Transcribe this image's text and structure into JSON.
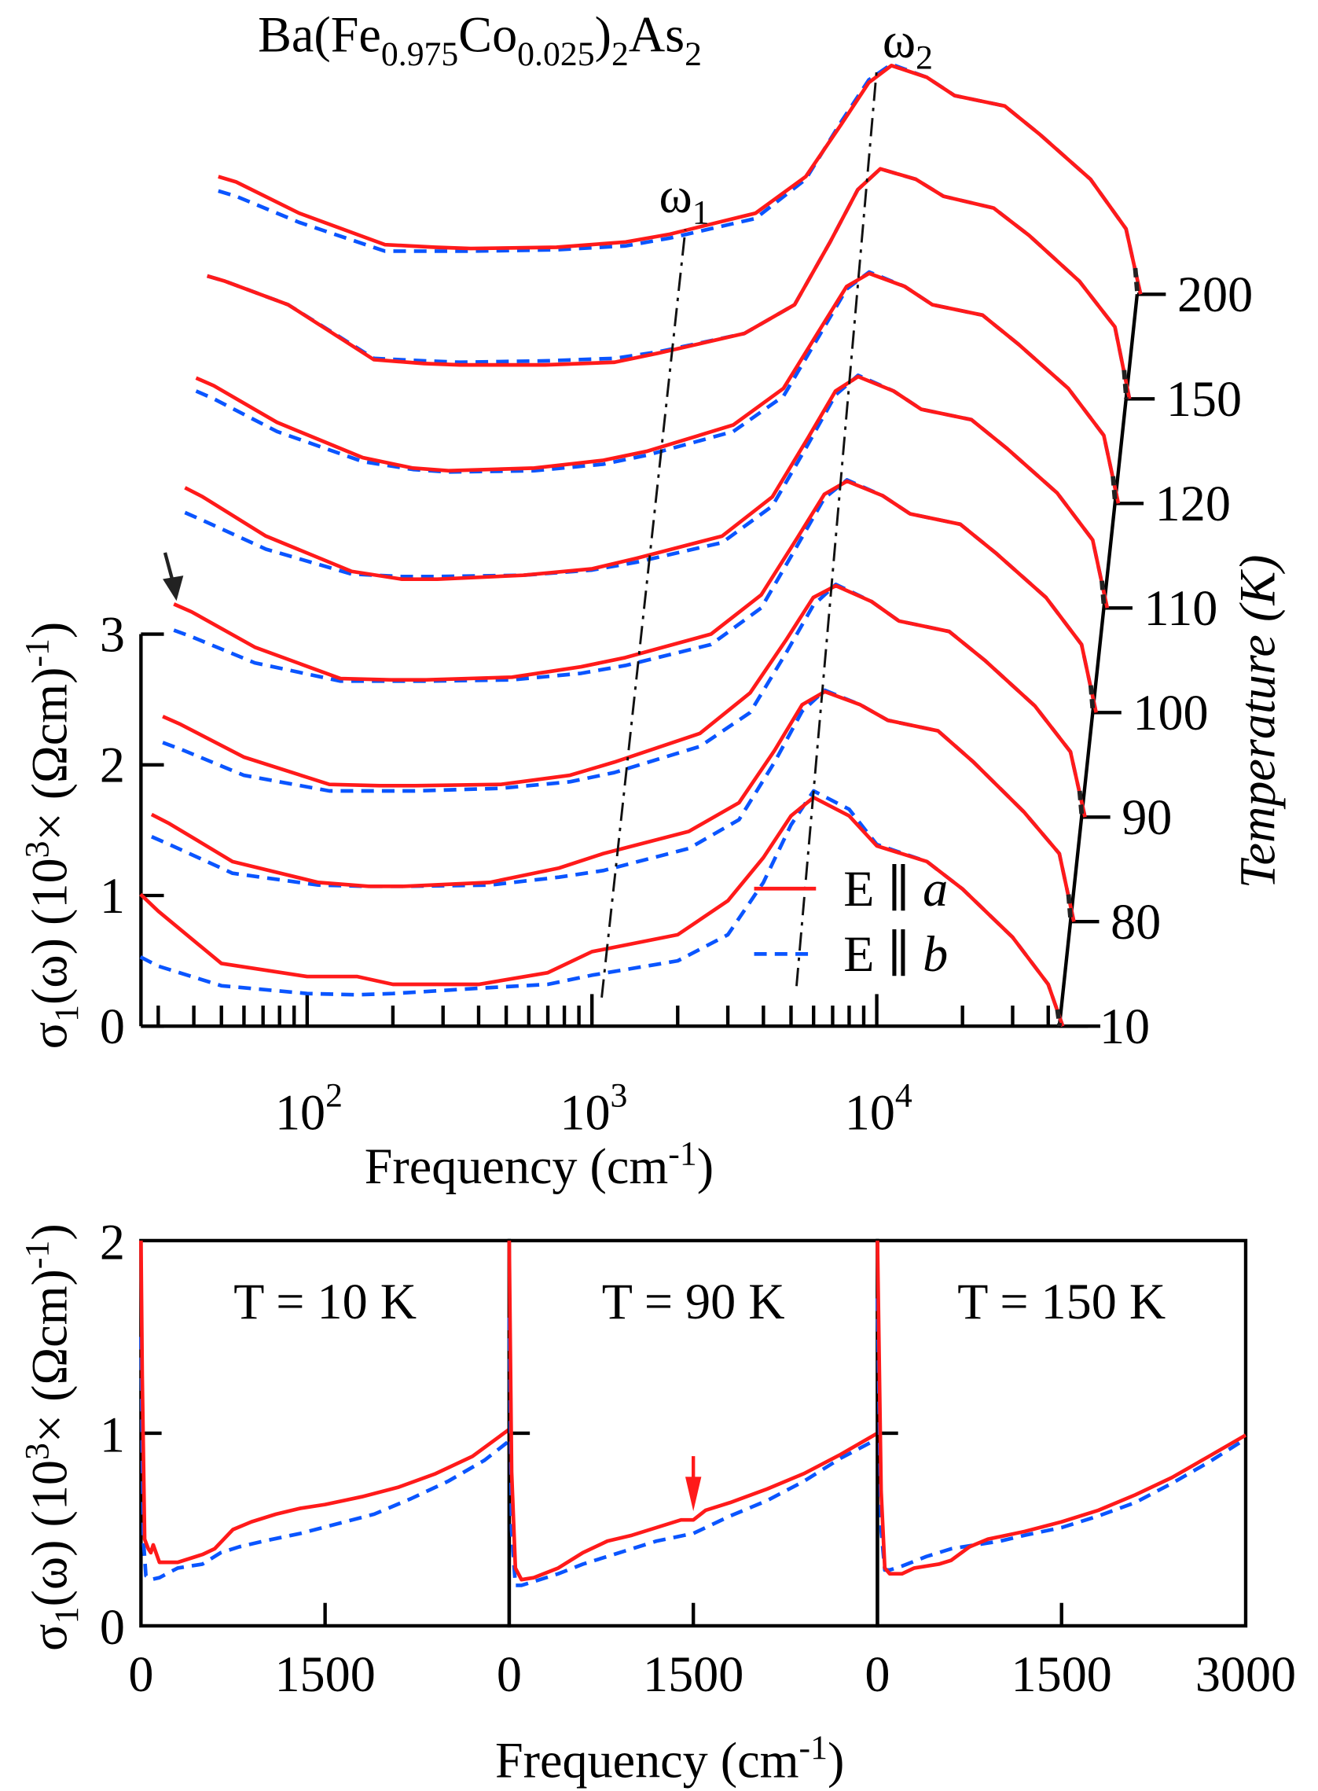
{
  "chart_data": [
    {
      "type": "line",
      "title": "Ba(Fe0.975Co0.025)2As2",
      "title_parts": {
        "base1": "Ba(Fe",
        "sub1": "0.975",
        "base2": "Co",
        "sub2": "0.025",
        "base3": ")",
        "sub3": "2",
        "base4": "As",
        "sub4": "2"
      },
      "layout": "waterfall, vertically offset by temperature",
      "offset_per_curve": 0.8,
      "xlabel": "Frequency (cm-1)",
      "xlabel_parts": {
        "base": "Frequency (cm",
        "sup": "-1",
        "end": ")"
      },
      "ylabel_parts": {
        "a": "σ",
        "sub": "1",
        "b": "(ω) (10",
        "sup1": "3",
        "c": "× (Ωcm)",
        "sup2": "-1",
        "d": ")"
      },
      "xscale": "log",
      "xlim": [
        26,
        46000
      ],
      "ylim": [
        0,
        3
      ],
      "yticks": [
        "0",
        "1",
        "2",
        "3"
      ],
      "xticks": [
        {
          "base": "10",
          "exp": "2"
        },
        {
          "base": "10",
          "exp": "3"
        },
        {
          "base": "10",
          "exp": "4"
        }
      ],
      "temperature_axis": {
        "label": "Temperature (K)",
        "ticks": [
          "10",
          "80",
          "90",
          "100",
          "110",
          "120",
          "150",
          "200"
        ]
      },
      "annotations": {
        "omega1": {
          "base": "ω",
          "sub": "1"
        },
        "omega2": {
          "base": "ω",
          "sub": "2"
        }
      },
      "legend": {
        "placement": "lower-right",
        "entries": [
          {
            "label": "E ∥ a",
            "base": "E ∥ ",
            "ital": "a",
            "color": "#ff1a1a",
            "style": "solid"
          },
          {
            "label": "E ∥ b",
            "base": "E ∥ ",
            "ital": "b",
            "color": "#0a55ff",
            "style": "dashed"
          }
        ]
      },
      "x": [
        26,
        30,
        50,
        100,
        150,
        200,
        400,
        700,
        1000,
        2000,
        3000,
        4000,
        5000,
        6000,
        8000,
        10000,
        15000,
        20000,
        30000,
        40000,
        45000
      ],
      "series": [
        {
          "temperature": "10",
          "a": [
            1.01,
            0.88,
            0.48,
            0.38,
            0.38,
            0.32,
            0.32,
            0.41,
            0.57,
            0.7,
            0.96,
            1.29,
            1.61,
            1.75,
            1.61,
            1.38,
            1.26,
            1.05,
            0.68,
            0.32,
            0
          ],
          "b": [
            0.53,
            0.46,
            0.31,
            0.25,
            0.24,
            0.25,
            0.29,
            0.32,
            0.39,
            0.5,
            0.7,
            1.1,
            1.54,
            1.8,
            1.66,
            1.39,
            1.26,
            1.05,
            0.68,
            0.32,
            0
          ]
        },
        {
          "temperature": "80",
          "a": [
            0.82,
            0.75,
            0.46,
            0.3,
            0.27,
            0.27,
            0.3,
            0.41,
            0.52,
            0.69,
            0.91,
            1.31,
            1.66,
            1.76,
            1.66,
            1.54,
            1.46,
            1.22,
            0.84,
            0.52,
            0
          ],
          "b": [
            0.65,
            0.59,
            0.37,
            0.28,
            0.27,
            0.27,
            0.28,
            0.34,
            0.39,
            0.56,
            0.78,
            1.22,
            1.61,
            1.77,
            1.66,
            1.54,
            1.46,
            1.22,
            0.84,
            0.52,
            0
          ]
        },
        {
          "temperature": "90",
          "a": [
            0.77,
            0.71,
            0.46,
            0.25,
            0.24,
            0.24,
            0.25,
            0.32,
            0.42,
            0.64,
            0.95,
            1.35,
            1.68,
            1.77,
            1.65,
            1.5,
            1.42,
            1.2,
            0.85,
            0.5,
            0
          ],
          "b": [
            0.57,
            0.52,
            0.32,
            0.2,
            0.2,
            0.2,
            0.22,
            0.27,
            0.34,
            0.54,
            0.8,
            1.25,
            1.62,
            1.78,
            1.65,
            1.5,
            1.42,
            1.2,
            0.85,
            0.5,
            0
          ]
        },
        {
          "temperature": "100",
          "a": [
            0.83,
            0.77,
            0.5,
            0.26,
            0.25,
            0.25,
            0.27,
            0.35,
            0.42,
            0.6,
            0.9,
            1.33,
            1.67,
            1.77,
            1.66,
            1.52,
            1.44,
            1.22,
            0.88,
            0.52,
            0
          ],
          "b": [
            0.63,
            0.58,
            0.38,
            0.24,
            0.24,
            0.24,
            0.25,
            0.3,
            0.36,
            0.52,
            0.8,
            1.27,
            1.64,
            1.78,
            1.66,
            1.52,
            1.44,
            1.22,
            0.88,
            0.52,
            0
          ]
        },
        {
          "temperature": "110",
          "a": [
            0.92,
            0.85,
            0.55,
            0.28,
            0.22,
            0.22,
            0.25,
            0.3,
            0.38,
            0.55,
            0.85,
            1.3,
            1.66,
            1.77,
            1.66,
            1.52,
            1.44,
            1.22,
            0.88,
            0.52,
            0
          ],
          "b": [
            0.73,
            0.67,
            0.45,
            0.26,
            0.24,
            0.24,
            0.25,
            0.29,
            0.35,
            0.5,
            0.78,
            1.25,
            1.63,
            1.78,
            1.66,
            1.52,
            1.44,
            1.22,
            0.88,
            0.52,
            0
          ]
        },
        {
          "temperature": "120",
          "a": [
            0.96,
            0.9,
            0.62,
            0.35,
            0.27,
            0.25,
            0.27,
            0.33,
            0.4,
            0.6,
            0.88,
            1.32,
            1.66,
            1.76,
            1.66,
            1.52,
            1.44,
            1.22,
            0.88,
            0.52,
            0
          ],
          "b": [
            0.86,
            0.8,
            0.55,
            0.32,
            0.26,
            0.24,
            0.25,
            0.3,
            0.37,
            0.55,
            0.82,
            1.28,
            1.64,
            1.77,
            1.66,
            1.52,
            1.44,
            1.22,
            0.88,
            0.52,
            0
          ]
        },
        {
          "temperature": "150",
          "a": [
            0.94,
            0.9,
            0.72,
            0.3,
            0.27,
            0.26,
            0.26,
            0.28,
            0.35,
            0.5,
            0.72,
            1.2,
            1.6,
            1.76,
            1.68,
            1.55,
            1.46,
            1.25,
            0.9,
            0.55,
            0
          ],
          "b": [
            0.94,
            0.9,
            0.72,
            0.31,
            0.29,
            0.28,
            0.29,
            0.31,
            0.36,
            0.5,
            0.72,
            1.2,
            1.6,
            1.76,
            1.68,
            1.55,
            1.46,
            1.25,
            0.9,
            0.55,
            0
          ]
        },
        {
          "temperature": "200",
          "a": [
            0.9,
            0.86,
            0.62,
            0.38,
            0.36,
            0.35,
            0.36,
            0.4,
            0.46,
            0.62,
            0.9,
            1.3,
            1.62,
            1.75,
            1.66,
            1.52,
            1.44,
            1.22,
            0.88,
            0.5,
            0
          ],
          "b": [
            0.79,
            0.75,
            0.55,
            0.33,
            0.33,
            0.33,
            0.34,
            0.37,
            0.43,
            0.58,
            0.88,
            1.32,
            1.64,
            1.76,
            1.66,
            1.52,
            1.44,
            1.22,
            0.88,
            0.5,
            0
          ]
        }
      ]
    },
    {
      "type": "line",
      "panels": [
        {
          "label": "T = 10 K",
          "a": [
            [
              0,
              2.0
            ],
            [
              10,
              1.3
            ],
            [
              30,
              0.45
            ],
            [
              60,
              0.4
            ],
            [
              80,
              0.38
            ],
            [
              100,
              0.42
            ],
            [
              150,
              0.33
            ],
            [
              300,
              0.33
            ],
            [
              500,
              0.37
            ],
            [
              600,
              0.4
            ],
            [
              750,
              0.5
            ],
            [
              900,
              0.54
            ],
            [
              1100,
              0.58
            ],
            [
              1300,
              0.61
            ],
            [
              1500,
              0.63
            ],
            [
              1800,
              0.67
            ],
            [
              2100,
              0.72
            ],
            [
              2400,
              0.79
            ],
            [
              2700,
              0.88
            ],
            [
              3000,
              1.02
            ]
          ],
          "b": [
            [
              0,
              1.5
            ],
            [
              20,
              0.45
            ],
            [
              40,
              0.26
            ],
            [
              80,
              0.24
            ],
            [
              150,
              0.25
            ],
            [
              300,
              0.3
            ],
            [
              500,
              0.32
            ],
            [
              650,
              0.38
            ],
            [
              800,
              0.41
            ],
            [
              1000,
              0.44
            ],
            [
              1300,
              0.48
            ],
            [
              1600,
              0.53
            ],
            [
              1900,
              0.58
            ],
            [
              2200,
              0.66
            ],
            [
              2500,
              0.75
            ],
            [
              2800,
              0.86
            ],
            [
              3000,
              0.96
            ]
          ]
        },
        {
          "label": "T = 90 K",
          "a": [
            [
              0,
              2.0
            ],
            [
              20,
              0.8
            ],
            [
              50,
              0.3
            ],
            [
              100,
              0.24
            ],
            [
              200,
              0.25
            ],
            [
              400,
              0.3
            ],
            [
              600,
              0.38
            ],
            [
              800,
              0.44
            ],
            [
              1000,
              0.47
            ],
            [
              1200,
              0.51
            ],
            [
              1400,
              0.55
            ],
            [
              1500,
              0.55
            ],
            [
              1600,
              0.6
            ],
            [
              1800,
              0.64
            ],
            [
              2100,
              0.71
            ],
            [
              2400,
              0.79
            ],
            [
              2700,
              0.89
            ],
            [
              3000,
              1.0
            ]
          ],
          "b": [
            [
              0,
              1.6
            ],
            [
              20,
              0.5
            ],
            [
              50,
              0.21
            ],
            [
              100,
              0.21
            ],
            [
              200,
              0.23
            ],
            [
              400,
              0.27
            ],
            [
              600,
              0.32
            ],
            [
              800,
              0.36
            ],
            [
              1000,
              0.4
            ],
            [
              1200,
              0.44
            ],
            [
              1500,
              0.48
            ],
            [
              1800,
              0.57
            ],
            [
              2100,
              0.65
            ],
            [
              2400,
              0.75
            ],
            [
              2700,
              0.87
            ],
            [
              3000,
              0.97
            ]
          ],
          "arrow_at": 1500
        },
        {
          "label": "T = 150 K",
          "a": [
            [
              0,
              2.0
            ],
            [
              30,
              0.7
            ],
            [
              60,
              0.3
            ],
            [
              100,
              0.27
            ],
            [
              200,
              0.27
            ],
            [
              300,
              0.3
            ],
            [
              500,
              0.32
            ],
            [
              600,
              0.34
            ],
            [
              750,
              0.41
            ],
            [
              900,
              0.45
            ],
            [
              1200,
              0.49
            ],
            [
              1500,
              0.54
            ],
            [
              1800,
              0.6
            ],
            [
              2100,
              0.68
            ],
            [
              2400,
              0.77
            ],
            [
              2700,
              0.88
            ],
            [
              3000,
              0.99
            ]
          ],
          "b": [
            [
              0,
              1.7
            ],
            [
              30,
              0.5
            ],
            [
              60,
              0.29
            ],
            [
              100,
              0.29
            ],
            [
              200,
              0.31
            ],
            [
              400,
              0.36
            ],
            [
              600,
              0.4
            ],
            [
              800,
              0.42
            ],
            [
              1000,
              0.44
            ],
            [
              1200,
              0.47
            ],
            [
              1500,
              0.51
            ],
            [
              1800,
              0.57
            ],
            [
              2100,
              0.64
            ],
            [
              2400,
              0.74
            ],
            [
              2700,
              0.85
            ],
            [
              3000,
              0.97
            ]
          ]
        }
      ],
      "xlim": [
        0,
        3000
      ],
      "ylim": [
        0,
        2
      ],
      "yticks": [
        "0",
        "1",
        "2"
      ],
      "xtick_labels": [
        "0",
        "1500",
        "0",
        "1500",
        "0",
        "1500",
        "3000"
      ],
      "xlabel": "Frequency (cm-1)",
      "xlabel_parts": {
        "base": "Frequency (cm",
        "sup": "-1",
        "end": ")"
      },
      "ylabel_parts": {
        "a": "σ",
        "sub": "1",
        "b": "(ω) (10",
        "sup1": "3",
        "c": "× (Ωcm)",
        "sup2": "-1",
        "d": ")"
      },
      "colors": {
        "a": "#ff1a1a",
        "b": "#0a55ff"
      }
    }
  ]
}
